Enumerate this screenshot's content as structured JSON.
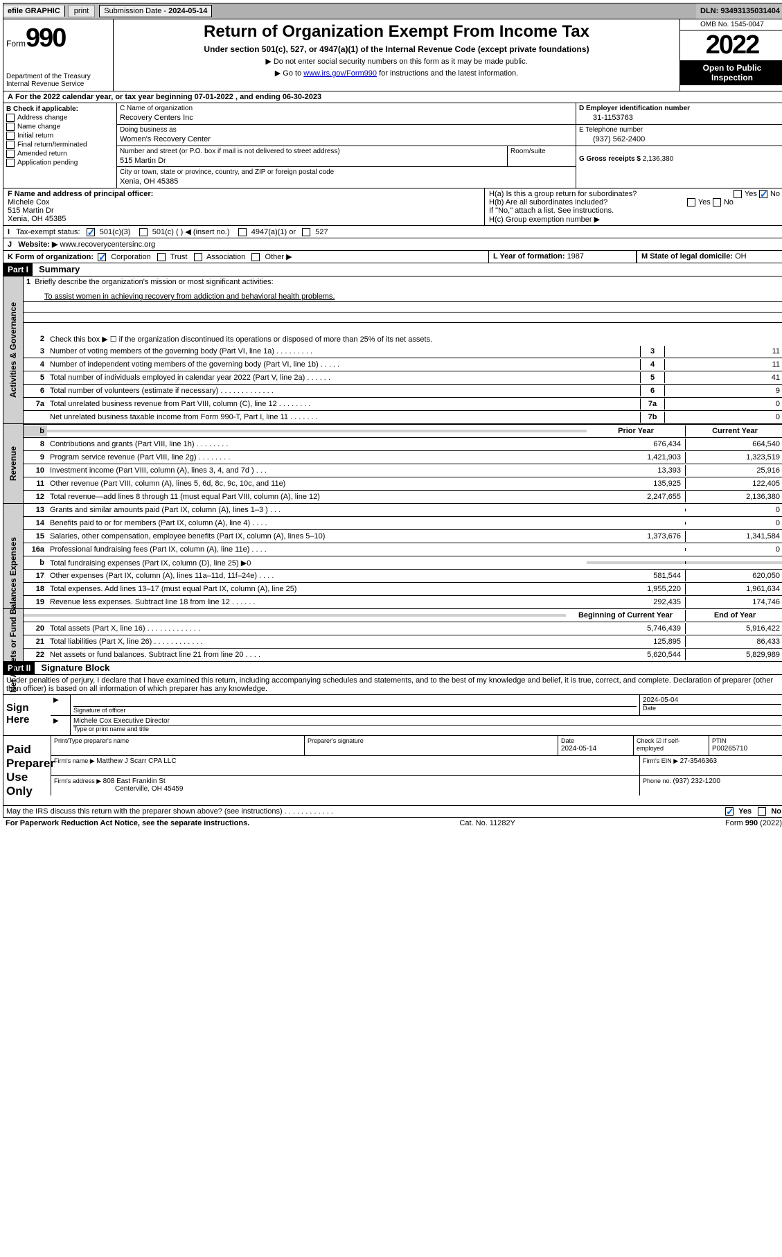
{
  "topbar": {
    "efile": "efile GRAPHIC",
    "print": "print",
    "subdate_label": "Submission Date - ",
    "subdate": "2024-05-14",
    "dln_label": "DLN: ",
    "dln": "93493135031404"
  },
  "header": {
    "form": "Form",
    "formnum": "990",
    "dept": "Department of the Treasury",
    "irs": "Internal Revenue Service",
    "title": "Return of Organization Exempt From Income Tax",
    "subtitle": "Under section 501(c), 527, or 4947(a)(1) of the Internal Revenue Code (except private foundations)",
    "line1": "▶ Do not enter social security numbers on this form as it may be made public.",
    "line2a": "▶ Go to ",
    "line2link": "www.irs.gov/Form990",
    "line2b": " for instructions and the latest information.",
    "omb": "OMB No. 1545-0047",
    "year": "2022",
    "open": "Open to Public Inspection"
  },
  "a": {
    "label": "For the 2022 calendar year, or tax year beginning ",
    "begin": "07-01-2022",
    "mid": " , and ending ",
    "end": "06-30-2023"
  },
  "b": {
    "title": "B Check if applicable:",
    "items": [
      "Address change",
      "Name change",
      "Initial return",
      "Final return/terminated",
      "Amended return",
      "Application pending"
    ]
  },
  "c": {
    "name_label": "C Name of organization",
    "name": "Recovery Centers Inc",
    "dba_label": "Doing business as",
    "dba": "Women's Recovery Center",
    "addr_label": "Number and street (or P.O. box if mail is not delivered to street address)",
    "room_label": "Room/suite",
    "addr": "515 Martin Dr",
    "city_label": "City or town, state or province, country, and ZIP or foreign postal code",
    "city": "Xenia, OH  45385"
  },
  "d": {
    "ein_label": "D Employer identification number",
    "ein": "31-1153763",
    "tel_label": "E Telephone number",
    "tel": "(937) 562-2400",
    "gross_label": "G Gross receipts $ ",
    "gross": "2,136,380"
  },
  "f": {
    "label": "F Name and address of principal officer:",
    "name": "Michele Cox",
    "addr1": "515 Martin Dr",
    "addr2": "Xenia, OH  45385"
  },
  "h": {
    "a_label": "H(a)  Is this a group return for subordinates?",
    "b_label": "H(b)  Are all subordinates included?",
    "b_note": "If \"No,\" attach a list. See instructions.",
    "c_label": "H(c)  Group exemption number ▶",
    "yes": "Yes",
    "no": "No"
  },
  "i": {
    "label": "Tax-exempt status:",
    "opts": [
      "501(c)(3)",
      "501(c) (  ) ◀ (insert no.)",
      "4947(a)(1) or",
      "527"
    ]
  },
  "j": {
    "label": "Website: ▶",
    "val": "www.recoverycentersinc.org"
  },
  "k": {
    "label": "K Form of organization:",
    "opts": [
      "Corporation",
      "Trust",
      "Association",
      "Other ▶"
    ]
  },
  "l": {
    "label": "L Year of formation: ",
    "val": "1987"
  },
  "m": {
    "label": "M State of legal domicile: ",
    "val": "OH"
  },
  "part1": {
    "header": "Part I",
    "title": "Summary",
    "l1_label": "Briefly describe the organization's mission or most significant activities:",
    "l1_val": "To assist women in achieving recovery from addiction and behavioral health problems.",
    "l2": "Check this box ▶ ☐  if the organization discontinued its operations or disposed of more than 25% of its net assets.",
    "lines_gov": [
      {
        "n": "3",
        "t": "Number of voting members of the governing body (Part VI, line 1a)  .  .  .  .  .  .  .  .  .",
        "box": "3",
        "v": "11"
      },
      {
        "n": "4",
        "t": "Number of independent voting members of the governing body (Part VI, line 1b)  .  .  .  .  .",
        "box": "4",
        "v": "11"
      },
      {
        "n": "5",
        "t": "Total number of individuals employed in calendar year 2022 (Part V, line 2a)  .  .  .  .  .  .",
        "box": "5",
        "v": "41"
      },
      {
        "n": "6",
        "t": "Total number of volunteers (estimate if necessary)  .  .  .  .  .  .  .  .  .  .  .  .  .",
        "box": "6",
        "v": "9"
      },
      {
        "n": "7a",
        "t": "Total unrelated business revenue from Part VIII, column (C), line 12  .  .  .  .  .  .  .  .",
        "box": "7a",
        "v": "0"
      },
      {
        "n": "",
        "t": "Net unrelated business taxable income from Form 990-T, Part I, line 11  .  .  .  .  .  .  .",
        "box": "7b",
        "v": "0"
      }
    ],
    "col_prior": "Prior Year",
    "col_curr": "Current Year",
    "lines_rev": [
      {
        "n": "8",
        "t": "Contributions and grants (Part VIII, line 1h)  .  .  .  .  .  .  .  .",
        "p": "676,434",
        "c": "664,540"
      },
      {
        "n": "9",
        "t": "Program service revenue (Part VIII, line 2g)  .  .  .  .  .  .  .  .",
        "p": "1,421,903",
        "c": "1,323,519"
      },
      {
        "n": "10",
        "t": "Investment income (Part VIII, column (A), lines 3, 4, and 7d )  .  .  .",
        "p": "13,393",
        "c": "25,916"
      },
      {
        "n": "11",
        "t": "Other revenue (Part VIII, column (A), lines 5, 6d, 8c, 9c, 10c, and 11e)",
        "p": "135,925",
        "c": "122,405"
      },
      {
        "n": "12",
        "t": "Total revenue—add lines 8 through 11 (must equal Part VIII, column (A), line 12)",
        "p": "2,247,655",
        "c": "2,136,380"
      }
    ],
    "lines_exp": [
      {
        "n": "13",
        "t": "Grants and similar amounts paid (Part IX, column (A), lines 1–3 )  .  .  .",
        "p": "",
        "c": "0"
      },
      {
        "n": "14",
        "t": "Benefits paid to or for members (Part IX, column (A), line 4)  .  .  .  .",
        "p": "",
        "c": "0"
      },
      {
        "n": "15",
        "t": "Salaries, other compensation, employee benefits (Part IX, column (A), lines 5–10)",
        "p": "1,373,676",
        "c": "1,341,584"
      },
      {
        "n": "16a",
        "t": "Professional fundraising fees (Part IX, column (A), line 11e)  .  .  .  .",
        "p": "",
        "c": "0"
      },
      {
        "n": "b",
        "t": "Total fundraising expenses (Part IX, column (D), line 25) ▶0",
        "p": null,
        "c": null,
        "shade": true
      },
      {
        "n": "17",
        "t": "Other expenses (Part IX, column (A), lines 11a–11d, 11f–24e)  .  .  .  .",
        "p": "581,544",
        "c": "620,050"
      },
      {
        "n": "18",
        "t": "Total expenses. Add lines 13–17 (must equal Part IX, column (A), line 25)",
        "p": "1,955,220",
        "c": "1,961,634"
      },
      {
        "n": "19",
        "t": "Revenue less expenses. Subtract line 18 from line 12  .  .  .  .  .  .",
        "p": "292,435",
        "c": "174,746"
      }
    ],
    "col_begin": "Beginning of Current Year",
    "col_end": "End of Year",
    "lines_net": [
      {
        "n": "20",
        "t": "Total assets (Part X, line 16)  .  .  .  .  .  .  .  .  .  .  .  .  .",
        "p": "5,746,439",
        "c": "5,916,422"
      },
      {
        "n": "21",
        "t": "Total liabilities (Part X, line 26)  .  .  .  .  .  .  .  .  .  .  .  .",
        "p": "125,895",
        "c": "86,433"
      },
      {
        "n": "22",
        "t": "Net assets or fund balances. Subtract line 21 from line 20  .  .  .  .",
        "p": "5,620,544",
        "c": "5,829,989"
      }
    ],
    "vtab_gov": "Activities & Governance",
    "vtab_rev": "Revenue",
    "vtab_exp": "Expenses",
    "vtab_net": "Net Assets or Fund Balances"
  },
  "part2": {
    "header": "Part II",
    "title": "Signature Block",
    "decl": "Under penalties of perjury, I declare that I have examined this return, including accompanying schedules and statements, and to the best of my knowledge and belief, it is true, correct, and complete. Declaration of preparer (other than officer) is based on all information of which preparer has any knowledge.",
    "sign_here": "Sign Here",
    "sig_officer": "Signature of officer",
    "sig_date": "Date",
    "sig_date_val": "2024-05-04",
    "officer_name": "Michele Cox Executive Director",
    "officer_type": "Type or print name and title",
    "paid": "Paid Preparer Use Only",
    "prep_name_label": "Print/Type preparer's name",
    "prep_sig_label": "Preparer's signature",
    "prep_date_label": "Date",
    "prep_date": "2024-05-14",
    "check_label": "Check ☑ if self-employed",
    "ptin_label": "PTIN",
    "ptin": "P00265710",
    "firm_name_label": "Firm's name    ▶ ",
    "firm_name": "Matthew J Scarr CPA LLC",
    "firm_ein_label": "Firm's EIN ▶ ",
    "firm_ein": "27-3546363",
    "firm_addr_label": "Firm's address ▶ ",
    "firm_addr1": "808 East Franklin St",
    "firm_addr2": "Centerville, OH  45459",
    "phone_label": "Phone no. ",
    "phone": "(937) 232-1200",
    "may_discuss": "May the IRS discuss this return with the preparer shown above? (see instructions)  .  .  .  .  .  .  .  .  .  .  .  .",
    "yes": "Yes",
    "no": "No"
  },
  "footer": {
    "pra": "For Paperwork Reduction Act Notice, see the separate instructions.",
    "cat": "Cat. No. 11282Y",
    "form": "Form 990 (2022)"
  }
}
